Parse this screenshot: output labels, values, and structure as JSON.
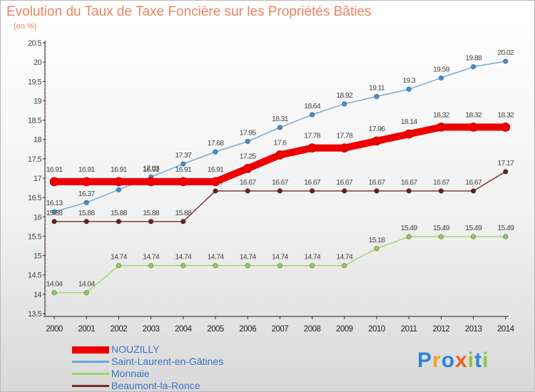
{
  "header": {
    "title": "Evolution du Taux de Taxe Foncière sur les Propriétés Bâties",
    "subtitle": "(en %)"
  },
  "logo": {
    "text": "Proxiti",
    "colors": [
      "#2a86d6",
      "#f0a21a",
      "#2a86d6",
      "#e8611f",
      "#8cc63f",
      "#2a86d6",
      "#8cc63f"
    ]
  },
  "chart_data": {
    "type": "line",
    "title": "Evolution du Taux de Taxe Foncière sur les Propriétés Bâties",
    "ylabel": "(en %)",
    "xlabel": "",
    "ylim": [
      13.5,
      20.5
    ],
    "yticks": [
      "13.5",
      "14",
      "14.5",
      "15",
      "15.5",
      "16",
      "16.5",
      "17",
      "17.5",
      "18",
      "18.5",
      "19",
      "19.5",
      "20",
      "20.5"
    ],
    "categories": [
      "2000",
      "2001",
      "2002",
      "2003",
      "2004",
      "2005",
      "2006",
      "2007",
      "2008",
      "2009",
      "2010",
      "2011",
      "2012",
      "2013",
      "2014"
    ],
    "series": [
      {
        "name": "Saint-Laurent-en-Gâtines",
        "color": "#6aa7d8",
        "marker": "#3f8fd3",
        "values": [
          16.13,
          16.37,
          16.7,
          17.03,
          17.37,
          17.68,
          17.95,
          18.31,
          18.64,
          18.92,
          19.11,
          19.3,
          19.59,
          19.88,
          20.02
        ],
        "labels": [
          "16.13",
          "16.37",
          "16.7",
          "17.03",
          "17.37",
          "17.68",
          "17.95",
          "18.31",
          "18.64",
          "18.92",
          "19.11",
          "19.3",
          "19.59",
          "19.88",
          "20.02"
        ]
      },
      {
        "name": "Monnaie",
        "color": "#9bd86a",
        "marker": "#8ccc55",
        "values": [
          14.04,
          14.04,
          14.74,
          14.74,
          14.74,
          14.74,
          14.74,
          14.74,
          14.74,
          14.74,
          15.18,
          15.49,
          15.49,
          15.49,
          15.49
        ],
        "labels": [
          "14.04",
          "14.04",
          "14.74",
          "14.74",
          "14.74",
          "14.74",
          "14.74",
          "14.74",
          "14.74",
          "14.74",
          "15.18",
          "15.49",
          "15.49",
          "15.49",
          "15.49"
        ]
      },
      {
        "name": "Beaumont-la-Ronce",
        "color": "#7a2a2a",
        "marker": "#6a1f1f",
        "values": [
          15.88,
          15.88,
          15.88,
          15.88,
          15.88,
          16.67,
          16.67,
          16.67,
          16.67,
          16.67,
          16.67,
          16.67,
          16.67,
          16.67,
          17.17
        ],
        "labels": [
          "15.88",
          "15.88",
          "15.88",
          "15.88",
          "15.88",
          "16.67",
          "16.67",
          "16.67",
          "16.67",
          "16.67",
          "16.67",
          "16.67",
          "16.67",
          "16.67",
          "17.17"
        ]
      },
      {
        "name": "NOUZILLY",
        "color": "#ee0000",
        "marker": "#ee0000",
        "values": [
          16.91,
          16.91,
          16.91,
          16.91,
          16.91,
          16.91,
          17.25,
          17.6,
          17.78,
          17.78,
          17.96,
          18.14,
          18.32,
          18.32,
          18.32
        ],
        "labels": [
          "16.91",
          "16.91",
          "16.91",
          "16.91",
          "16.91",
          "16.91",
          "17.25",
          "17.6",
          "17.78",
          "17.78",
          "17.96",
          "18.14",
          "18.32",
          "18.32",
          "18.32"
        ]
      }
    ],
    "legend": [
      "NOUZILLY",
      "Saint-Laurent-en-Gâtines",
      "Monnaie",
      "Beaumont-la-Ronce"
    ],
    "legend_position": "bottom-left",
    "grid": false
  }
}
